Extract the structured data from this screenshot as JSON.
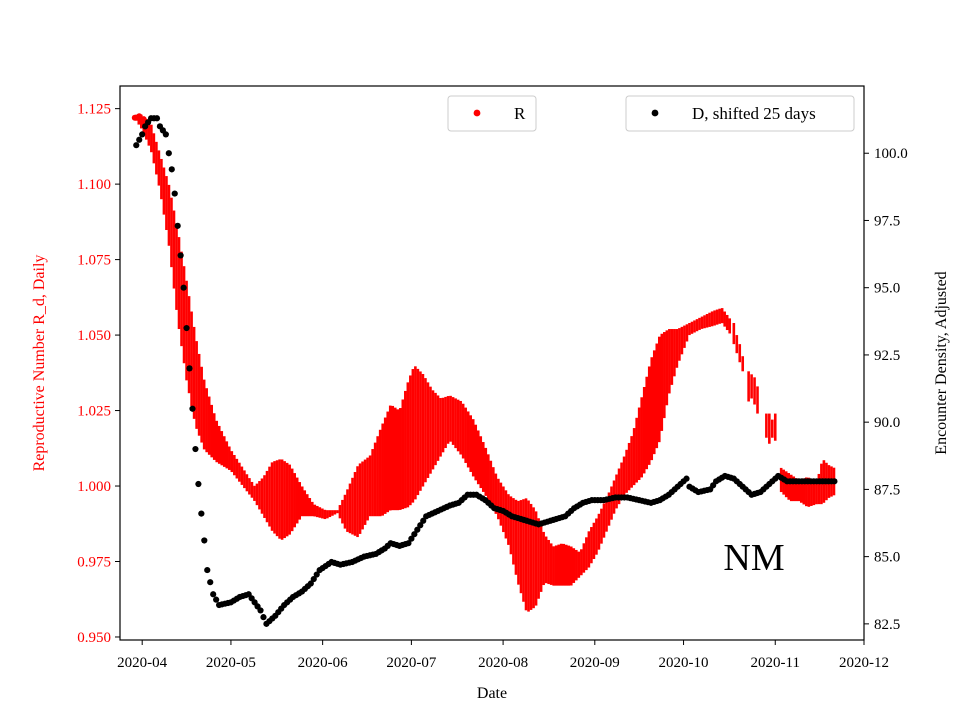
{
  "chart_data": {
    "type": "scatter",
    "title": "",
    "xlabel": "Date",
    "ylabel_left": "Reproductive Number R_d, Daily",
    "ylabel_right": "Encounter Density, Adjusted",
    "x_ticks": [
      "2020-04",
      "2020-05",
      "2020-06",
      "2020-07",
      "2020-08",
      "2020-09",
      "2020-10",
      "2020-11",
      "2020-12"
    ],
    "y_left_ticks": [
      "0.950",
      "0.975",
      "1.000",
      "1.025",
      "1.050",
      "1.075",
      "1.100",
      "1.125"
    ],
    "y_right_ticks": [
      "82.5",
      "85.0",
      "87.5",
      "90.0",
      "92.5",
      "95.0",
      "97.5",
      "100.0"
    ],
    "xlim_days_from_2020_04_01": [
      -7.5,
      244
    ],
    "ylim_left": [
      0.949,
      1.1325
    ],
    "ylim_right": [
      81.9,
      102.5
    ],
    "annotation": "NM",
    "colors": {
      "r_series": "#ff0000",
      "d_series": "#000000",
      "left_axis": "#ff0000"
    },
    "legend": [
      {
        "label": "R",
        "color": "#ff0000",
        "placement": "top-center"
      },
      {
        "label": "D, shifted 25 days",
        "color": "#000000",
        "placement": "top-right"
      }
    ],
    "series": [
      {
        "name": "R",
        "axis": "left",
        "note": "band of daily estimates: [day offset from 2020-04-01, lower, upper]",
        "band": [
          [
            -2,
            1.121,
            1.123
          ],
          [
            0,
            1.118,
            1.123
          ],
          [
            3,
            1.111,
            1.12
          ],
          [
            6,
            1.098,
            1.11
          ],
          [
            9,
            1.08,
            1.1
          ],
          [
            12,
            1.055,
            1.085
          ],
          [
            15,
            1.035,
            1.068
          ],
          [
            18,
            1.02,
            1.05
          ],
          [
            21,
            1.012,
            1.035
          ],
          [
            25,
            1.008,
            1.022
          ],
          [
            30,
            1.005,
            1.012
          ],
          [
            34,
            1.0,
            1.006
          ],
          [
            38,
            0.995,
            1.0
          ],
          [
            41,
            0.99,
            1.003
          ],
          [
            44,
            0.985,
            1.008
          ],
          [
            47,
            0.982,
            1.009
          ],
          [
            50,
            0.984,
            1.007
          ],
          [
            54,
            0.99,
            1.0
          ],
          [
            58,
            0.99,
            0.994
          ],
          [
            62,
            0.989,
            0.992
          ],
          [
            66,
            0.991,
            0.992
          ],
          [
            69,
            0.985,
            0.998
          ],
          [
            73,
            0.983,
            1.007
          ],
          [
            77,
            0.99,
            1.01
          ],
          [
            81,
            0.99,
            1.02
          ],
          [
            84,
            0.992,
            1.027
          ],
          [
            87,
            0.992,
            1.025
          ],
          [
            90,
            0.993,
            1.035
          ],
          [
            92,
            0.995,
            1.04
          ],
          [
            95,
            1.0,
            1.037
          ],
          [
            98,
            1.005,
            1.032
          ],
          [
            101,
            1.01,
            1.029
          ],
          [
            104,
            1.015,
            1.03
          ],
          [
            108,
            1.01,
            1.028
          ],
          [
            112,
            1.003,
            1.022
          ],
          [
            116,
            0.997,
            1.013
          ],
          [
            120,
            0.99,
            1.003
          ],
          [
            124,
            0.98,
            0.997
          ],
          [
            127,
            0.968,
            0.995
          ],
          [
            130,
            0.958,
            0.996
          ],
          [
            133,
            0.96,
            0.992
          ],
          [
            136,
            0.968,
            0.984
          ],
          [
            139,
            0.967,
            0.98
          ],
          [
            142,
            0.967,
            0.981
          ],
          [
            145,
            0.967,
            0.98
          ],
          [
            148,
            0.97,
            0.978
          ],
          [
            151,
            0.973,
            0.985
          ],
          [
            154,
            0.978,
            0.99
          ],
          [
            157,
            0.985,
            0.996
          ],
          [
            160,
            0.992,
            1.003
          ],
          [
            163,
            0.997,
            1.01
          ],
          [
            166,
            1.0,
            1.018
          ],
          [
            169,
            1.003,
            1.03
          ],
          [
            172,
            1.008,
            1.042
          ],
          [
            175,
            1.015,
            1.05
          ],
          [
            178,
            1.03,
            1.052
          ],
          [
            181,
            1.04,
            1.052
          ],
          [
            185,
            1.05,
            1.054
          ],
          [
            189,
            1.052,
            1.056
          ],
          [
            193,
            1.053,
            1.058
          ],
          [
            196,
            1.054,
            1.059
          ],
          [
            199,
            1.05,
            1.055
          ]
        ],
        "segments": [
          [
            200,
            1.047,
            1.054
          ],
          [
            201,
            1.044,
            1.05
          ],
          [
            202,
            1.041,
            1.047
          ],
          [
            203,
            1.038,
            1.043
          ],
          [
            205,
            1.028,
            1.038
          ],
          [
            206,
            1.029,
            1.037
          ],
          [
            207,
            1.027,
            1.036
          ],
          [
            208,
            1.024,
            1.033
          ],
          [
            211,
            1.016,
            1.024
          ],
          [
            212,
            1.014,
            1.024
          ],
          [
            213,
            1.016,
            1.022
          ],
          [
            214,
            1.015,
            1.024
          ]
        ],
        "tail_band": [
          [
            216,
            0.998,
            1.006
          ],
          [
            219,
            0.995,
            1.004
          ],
          [
            222,
            0.995,
            1.002
          ],
          [
            225,
            0.993,
            1.003
          ],
          [
            228,
            0.994,
            1.001
          ],
          [
            230,
            0.994,
            1.009
          ],
          [
            232,
            0.996,
            1.007
          ],
          [
            234,
            0.997,
            1.006
          ]
        ]
      },
      {
        "name": "D, shifted 25 days",
        "axis": "right",
        "note": "[day offset from 2020-04-01, value]",
        "points": [
          [
            -2,
            100.3
          ],
          [
            0,
            100.7
          ],
          [
            1,
            101.0
          ],
          [
            3,
            101.3
          ],
          [
            5,
            101.3
          ],
          [
            6,
            101.0
          ],
          [
            8,
            100.7
          ],
          [
            9,
            100.0
          ],
          [
            10,
            99.4
          ],
          [
            11,
            98.5
          ],
          [
            12,
            97.3
          ],
          [
            13,
            96.2
          ],
          [
            14,
            95.0
          ],
          [
            15,
            93.5
          ],
          [
            16,
            92.0
          ],
          [
            17,
            90.5
          ],
          [
            18,
            89.0
          ],
          [
            19,
            87.7
          ],
          [
            20,
            86.6
          ],
          [
            21,
            85.6
          ],
          [
            22,
            84.5
          ],
          [
            24,
            83.6
          ],
          [
            26,
            83.2
          ],
          [
            30,
            83.3
          ],
          [
            33,
            83.5
          ],
          [
            36,
            83.6
          ],
          [
            38,
            83.3
          ],
          [
            40,
            83.0
          ],
          [
            42,
            82.5
          ],
          [
            45,
            82.8
          ],
          [
            48,
            83.2
          ],
          [
            51,
            83.5
          ],
          [
            54,
            83.7
          ],
          [
            57,
            84.0
          ],
          [
            60,
            84.5
          ],
          [
            64,
            84.8
          ],
          [
            67,
            84.7
          ],
          [
            71,
            84.8
          ],
          [
            75,
            85.0
          ],
          [
            79,
            85.1
          ],
          [
            82,
            85.3
          ],
          [
            84,
            85.5
          ],
          [
            87,
            85.4
          ],
          [
            90,
            85.5
          ],
          [
            93,
            86.0
          ],
          [
            96,
            86.5
          ],
          [
            100,
            86.7
          ],
          [
            104,
            86.9
          ],
          [
            107,
            87.0
          ],
          [
            110,
            87.3
          ],
          [
            113,
            87.3
          ],
          [
            116,
            87.1
          ],
          [
            119,
            86.8
          ],
          [
            122,
            86.7
          ],
          [
            125,
            86.5
          ],
          [
            128,
            86.4
          ],
          [
            131,
            86.3
          ],
          [
            134,
            86.2
          ],
          [
            137,
            86.3
          ],
          [
            140,
            86.4
          ],
          [
            143,
            86.5
          ],
          [
            146,
            86.8
          ],
          [
            149,
            87.0
          ],
          [
            152,
            87.1
          ],
          [
            156,
            87.1
          ],
          [
            160,
            87.2
          ],
          [
            164,
            87.2
          ],
          [
            168,
            87.1
          ],
          [
            172,
            87.0
          ],
          [
            175,
            87.1
          ],
          [
            178,
            87.3
          ],
          [
            181,
            87.6
          ],
          [
            184,
            87.9
          ],
          [
            185,
            87.6
          ],
          [
            188,
            87.4
          ],
          [
            192,
            87.5
          ],
          [
            194,
            87.8
          ],
          [
            197,
            88.0
          ],
          [
            200,
            87.9
          ],
          [
            203,
            87.6
          ],
          [
            206,
            87.3
          ],
          [
            209,
            87.4
          ],
          [
            212,
            87.7
          ],
          [
            215,
            88.0
          ],
          [
            218,
            87.8
          ],
          [
            222,
            87.8
          ],
          [
            226,
            87.8
          ],
          [
            230,
            87.8
          ],
          [
            234,
            87.8
          ]
        ]
      }
    ]
  }
}
